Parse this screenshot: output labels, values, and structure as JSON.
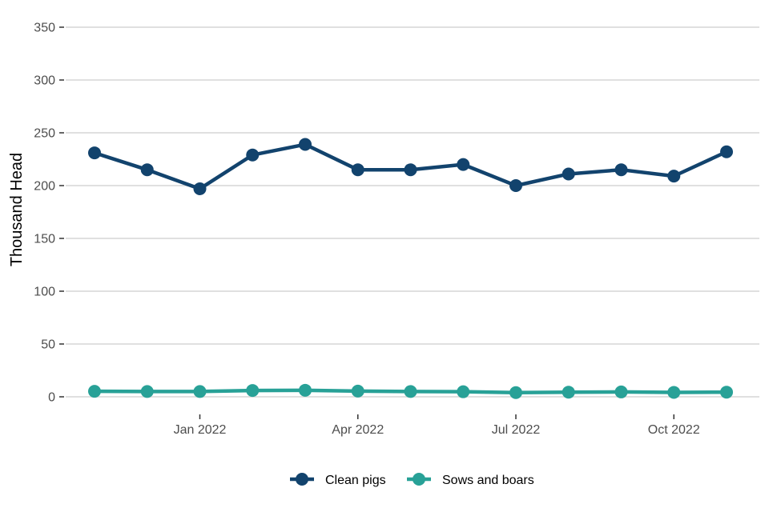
{
  "chart_data": {
    "type": "line",
    "title": "",
    "xlabel": "",
    "ylabel": "Thousand Head",
    "x": [
      "2021-11",
      "2021-12",
      "2022-01",
      "2022-02",
      "2022-03",
      "2022-04",
      "2022-05",
      "2022-06",
      "2022-07",
      "2022-08",
      "2022-09",
      "2022-10",
      "2022-11"
    ],
    "x_ticks": [
      {
        "x": "2022-01",
        "label": "Jan 2022"
      },
      {
        "x": "2022-04",
        "label": "Apr 2022"
      },
      {
        "x": "2022-07",
        "label": "Jul 2022"
      },
      {
        "x": "2022-10",
        "label": "Oct 2022"
      }
    ],
    "y_ticks": [
      0,
      50,
      100,
      150,
      200,
      250,
      300,
      350
    ],
    "ylim": [
      0,
      350
    ],
    "grid": true,
    "legend_position": "bottom",
    "series": [
      {
        "name": "Clean pigs",
        "color": "#12436d",
        "values": [
          231,
          215,
          197,
          229,
          239,
          215,
          215,
          220,
          200,
          211,
          215,
          209,
          232
        ]
      },
      {
        "name": "Sows and boars",
        "color": "#28a197",
        "values": [
          5.2,
          5.0,
          5.0,
          6.0,
          6.2,
          5.4,
          5.0,
          4.8,
          4.0,
          4.4,
          4.6,
          4.2,
          4.4
        ]
      }
    ]
  }
}
